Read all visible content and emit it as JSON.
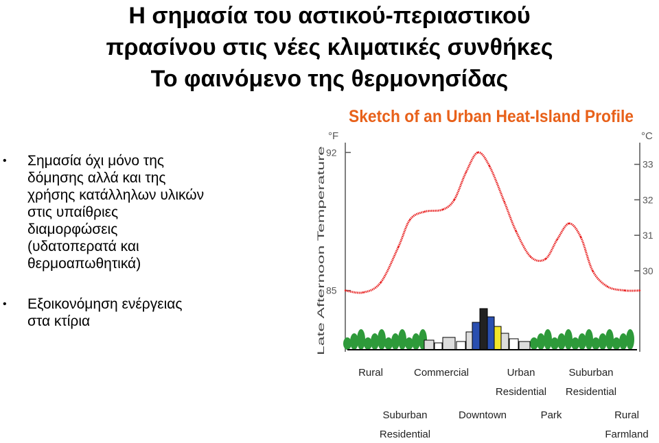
{
  "slide": {
    "title_lines": [
      "Η σημασία του αστικού-περιαστικού",
      "πρασίνου στις νέες κλιματικές συνθήκες",
      "Το φαινόμενο της θερμονησίδας"
    ],
    "bullets": [
      {
        "marker": "•",
        "lines": [
          "Σημασία όχι μόνο της",
          "δόμησης αλλά και της",
          "χρήσης κατάλληλων υλικών",
          "στις υπαίθριες",
          "διαμορφώσεις",
          "(υδατοπερατά και",
          "θερμοαπωθητικά)"
        ]
      },
      {
        "marker": "•",
        "lines": [
          "Εξοικονόμηση ενέργειας",
          "στα κτίρια"
        ]
      }
    ]
  },
  "chart_data": {
    "type": "line",
    "title": "Sketch of an Urban Heat-Island Profile",
    "ylabel": "Late Afternoon Temperature",
    "y_left_unit": "°F",
    "y_right_unit": "°C",
    "y_left_ticks": [
      "92",
      "85"
    ],
    "y_right_ticks": [
      "33",
      "32",
      "31",
      "30"
    ],
    "x_labels_row1": [
      "Rural",
      "Commercial",
      "Urban Residential",
      "Suburban Residential"
    ],
    "x_labels_row2": [
      "Suburban Residential",
      "Downtown",
      "Park",
      "Rural Farmland"
    ],
    "series": [
      {
        "color": "#e82020",
        "points": [
          {
            "x": 0.0,
            "y": 85.0
          },
          {
            "x": 0.06,
            "y": 84.9
          },
          {
            "x": 0.12,
            "y": 85.4
          },
          {
            "x": 0.18,
            "y": 87.2
          },
          {
            "x": 0.22,
            "y": 88.6
          },
          {
            "x": 0.27,
            "y": 89.0
          },
          {
            "x": 0.33,
            "y": 89.1
          },
          {
            "x": 0.37,
            "y": 89.6
          },
          {
            "x": 0.41,
            "y": 91.0
          },
          {
            "x": 0.45,
            "y": 92.0
          },
          {
            "x": 0.49,
            "y": 91.3
          },
          {
            "x": 0.54,
            "y": 89.5
          },
          {
            "x": 0.58,
            "y": 88.0
          },
          {
            "x": 0.63,
            "y": 86.7
          },
          {
            "x": 0.68,
            "y": 86.6
          },
          {
            "x": 0.72,
            "y": 87.6
          },
          {
            "x": 0.76,
            "y": 88.4
          },
          {
            "x": 0.8,
            "y": 87.7
          },
          {
            "x": 0.84,
            "y": 86.0
          },
          {
            "x": 0.89,
            "y": 85.2
          },
          {
            "x": 0.95,
            "y": 85.0
          },
          {
            "x": 1.0,
            "y": 85.0
          }
        ]
      }
    ],
    "ylim": [
      84.5,
      92.5
    ],
    "colors": {
      "title": "#e8611a",
      "axis": "#555555",
      "trees": "#2e9a3a",
      "building_accent": "#f2e52a",
      "building_blue": "#2a4fb0"
    }
  }
}
